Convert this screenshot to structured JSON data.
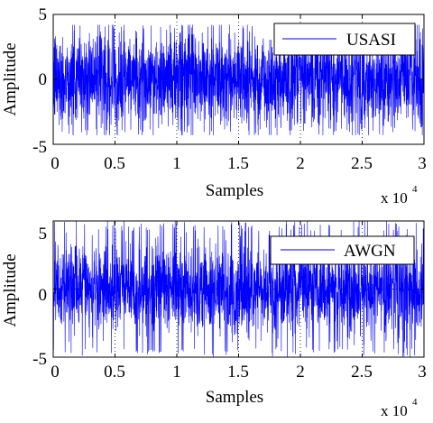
{
  "chart_data": [
    {
      "type": "line",
      "xlabel": "Samples",
      "ylabel": "Amplitude",
      "x_multiplier_label": {
        "base": "x 10",
        "exponent": "4"
      },
      "xlim": [
        0,
        3
      ],
      "ylim": [
        -5,
        5
      ],
      "xticks": [
        "0",
        "0.5",
        "1",
        "1.5",
        "2",
        "2.5",
        "3"
      ],
      "yticks": [
        "5",
        "0",
        "-5"
      ],
      "grid": true,
      "legend_position": "top-right",
      "line_color": "#0000FF",
      "series": [
        {
          "name": "USASI",
          "x_range": [
            0,
            30000
          ],
          "sample_count": 30000,
          "envelope": {
            "min": -4.3,
            "max": 4.2
          },
          "typical_range": [
            -3.5,
            3.5
          ]
        }
      ]
    },
    {
      "type": "line",
      "xlabel": "Samples",
      "ylabel": "Amplitude",
      "x_multiplier_label": {
        "base": "x 10",
        "exponent": "4"
      },
      "xlim": [
        0,
        3
      ],
      "ylim": [
        -5,
        5
      ],
      "xticks": [
        "0",
        "0.5",
        "1",
        "1.5",
        "2",
        "2.5",
        "3"
      ],
      "yticks": [
        "5",
        "0",
        "-5"
      ],
      "grid": true,
      "legend_position": "top-right",
      "line_color": "#0000FF",
      "series": [
        {
          "name": "AWGN",
          "x_range": [
            0,
            30000
          ],
          "sample_count": 30000,
          "envelope": {
            "min": -5.0,
            "max": 5.0
          },
          "typical_range": [
            -3.0,
            3.0
          ]
        }
      ]
    }
  ]
}
